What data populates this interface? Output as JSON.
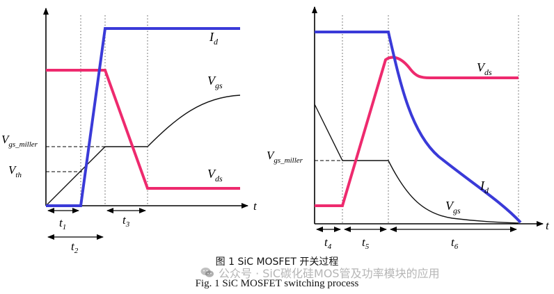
{
  "left_panel": {
    "labels": {
      "id_main": "I",
      "id_sub": "d",
      "vgs_main": "V",
      "vgs_sub": "gs",
      "vds_main": "V",
      "vds_sub": "ds",
      "vmiller_main": "V",
      "vmiller_sub": "gs_miller",
      "vth_main": "V",
      "vth_sub": "th",
      "t_axis": "t",
      "t1_main": "t",
      "t1_sub": "1",
      "t2_main": "t",
      "t2_sub": "2",
      "t3_main": "t",
      "t3_sub": "3"
    }
  },
  "right_panel": {
    "labels": {
      "vds_main": "V",
      "vds_sub": "ds",
      "vmiller_main": "V",
      "vmiller_sub": "gs_miller",
      "id_main": "I",
      "id_sub": "d",
      "vgs_main": "V",
      "vgs_sub": "gs",
      "t_axis": "t",
      "t4_main": "t",
      "t4_sub": "4",
      "t5_main": "t",
      "t5_sub": "5",
      "t6_main": "t",
      "t6_sub": "6"
    }
  },
  "colors": {
    "id": "#3a3ad8",
    "vds": "#ee2a6e",
    "vgs": "#111111"
  },
  "captions": {
    "cn": "图 1   SiC MOSFET 开关过程",
    "en": "Fig. 1    SiC MOSFET switching process"
  },
  "watermark": {
    "icon": "wechat-icon",
    "text": "公众号 · SiC碳化硅MOS管及功率模块的应用"
  }
}
